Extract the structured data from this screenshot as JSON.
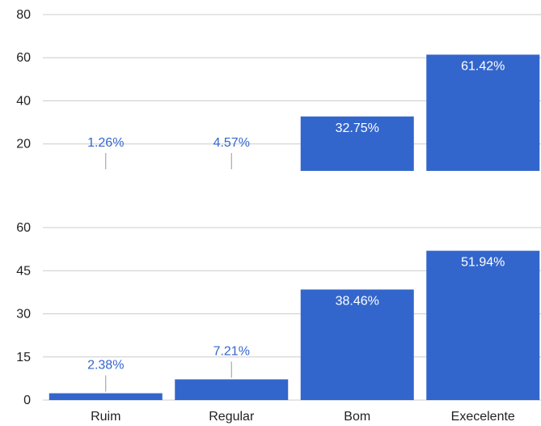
{
  "colors": {
    "bar": "#3366cc",
    "grid": "#cccccc",
    "label_inside": "#ffffff",
    "label_outside": "#3366cc",
    "tick": "#222222"
  },
  "chart_data": [
    {
      "type": "bar",
      "categories": [
        "Ruim",
        "Regular",
        "Bom",
        "Execelente"
      ],
      "values": [
        1.26,
        4.57,
        32.75,
        61.42
      ],
      "data_labels": [
        "1.26%",
        "4.57%",
        "32.75%",
        "61.42%"
      ],
      "ylim": [
        7.5,
        80
      ],
      "yticks": [
        "20",
        "40",
        "60",
        "80"
      ],
      "grid": true
    },
    {
      "type": "bar",
      "categories": [
        "Ruim",
        "Regular",
        "Bom",
        "Execelente"
      ],
      "values": [
        2.38,
        7.21,
        38.46,
        51.94
      ],
      "data_labels": [
        "2.38%",
        "7.21%",
        "38.46%",
        "51.94%"
      ],
      "ylim": [
        0,
        60
      ],
      "yticks": [
        "0",
        "15",
        "30",
        "45",
        "60"
      ],
      "grid": true
    }
  ]
}
